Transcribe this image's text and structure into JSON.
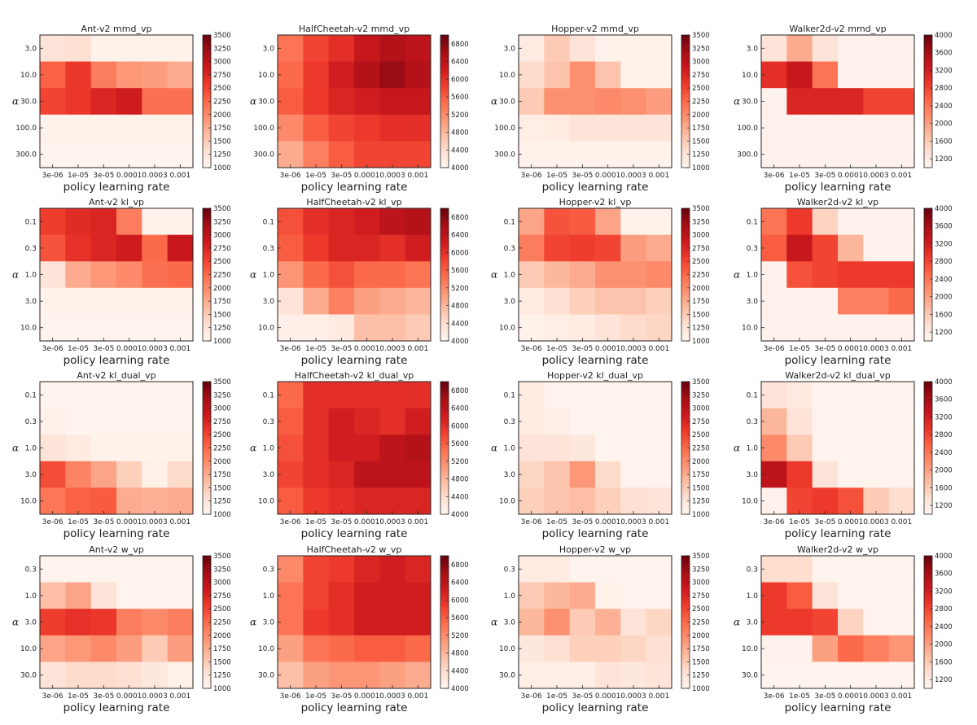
{
  "figure": {
    "xlabel": "policy learning rate",
    "ylabel": "α"
  },
  "colormap": {
    "name": "Reds",
    "stops": [
      "#fff5f0",
      "#fee0d2",
      "#fcbba1",
      "#fc9272",
      "#fb6a4a",
      "#ef3b2c",
      "#cb181d",
      "#a50f15",
      "#67000d"
    ]
  },
  "chart_data": [
    {
      "type": "heatmap",
      "title": "Ant-v2 mmd_vp",
      "xlabel": "policy learning rate",
      "ylabel": "α",
      "x": [
        "3e-06",
        "1e-05",
        "3e-05",
        "0.0001",
        "0.0003",
        "0.001"
      ],
      "y": [
        "3.0",
        "10.0",
        "30.0",
        "100.0",
        "300.0"
      ],
      "vmin": 1000,
      "vmax": 3500,
      "colorbar_ticks": [
        "1000",
        "1250",
        "1500",
        "1750",
        "2000",
        "2250",
        "2500",
        "2750",
        "3000",
        "3250",
        "3500"
      ],
      "values": [
        [
          1250,
          1300,
          1050,
          1050,
          1050,
          1050
        ],
        [
          2300,
          2600,
          2100,
          1900,
          1850,
          1750
        ],
        [
          2500,
          2600,
          2750,
          2850,
          2200,
          2200
        ],
        [
          1050,
          1050,
          1050,
          1050,
          1050,
          1050
        ],
        [
          1030,
          1030,
          1030,
          1030,
          1030,
          1030
        ]
      ]
    },
    {
      "type": "heatmap",
      "title": "HalfCheetah-v2 mmd_vp",
      "xlabel": "policy learning rate",
      "ylabel": "α",
      "x": [
        "3e-06",
        "1e-05",
        "3e-05",
        "0.0001",
        "0.0003",
        "0.001"
      ],
      "y": [
        "3.0",
        "10.0",
        "30.0",
        "100.0",
        "300.0"
      ],
      "vmin": 4000,
      "vmax": 7000,
      "colorbar_ticks": [
        "4000",
        "4400",
        "4800",
        "5200",
        "5600",
        "6000",
        "6400",
        "6800"
      ],
      "values": [
        [
          5400,
          5800,
          6000,
          6300,
          6500,
          6400
        ],
        [
          5500,
          5900,
          6200,
          6500,
          6700,
          6500
        ],
        [
          5600,
          5900,
          6100,
          6200,
          6300,
          6300
        ],
        [
          5200,
          5600,
          5800,
          5900,
          6000,
          6000
        ],
        [
          4900,
          5300,
          5600,
          5800,
          5800,
          5800
        ]
      ]
    },
    {
      "type": "heatmap",
      "title": "Hopper-v2 mmd_vp",
      "xlabel": "policy learning rate",
      "ylabel": "α",
      "x": [
        "3e-06",
        "1e-05",
        "3e-05",
        "0.0001",
        "0.0003",
        "0.001"
      ],
      "y": [
        "3.0",
        "10.0",
        "30.0",
        "100.0",
        "300.0"
      ],
      "vmin": 1000,
      "vmax": 3500,
      "colorbar_ticks": [
        "1000",
        "1250",
        "1500",
        "1750",
        "2000",
        "2250",
        "2500",
        "2750",
        "3000",
        "3250",
        "3500"
      ],
      "values": [
        [
          1150,
          1500,
          1250,
          1050,
          1050,
          1050
        ],
        [
          1350,
          1550,
          1950,
          1550,
          1050,
          1050
        ],
        [
          1500,
          1950,
          1950,
          2000,
          1950,
          1850
        ],
        [
          1100,
          1150,
          1250,
          1250,
          1250,
          1250
        ],
        [
          1050,
          1050,
          1050,
          1050,
          1050,
          1050
        ]
      ]
    },
    {
      "type": "heatmap",
      "title": "Walker2d-v2 mmd_vp",
      "xlabel": "policy learning rate",
      "ylabel": "α",
      "x": [
        "3e-06",
        "1e-05",
        "3e-05",
        "0.0001",
        "0.0003",
        "0.001"
      ],
      "y": [
        "3.0",
        "10.0",
        "30.0",
        "100.0",
        "300.0"
      ],
      "vmin": 1000,
      "vmax": 4000,
      "colorbar_ticks": [
        "1200",
        "1600",
        "2000",
        "2400",
        "2800",
        "3200",
        "3600",
        "4000"
      ],
      "values": [
        [
          1300,
          1900,
          1300,
          1050,
          1050,
          1050
        ],
        [
          3000,
          3300,
          2400,
          1050,
          1050,
          1050
        ],
        [
          1050,
          3100,
          3100,
          3100,
          2800,
          2800
        ],
        [
          1050,
          1050,
          1050,
          1050,
          1050,
          1050
        ],
        [
          1050,
          1050,
          1050,
          1050,
          1050,
          1050
        ]
      ]
    },
    {
      "type": "heatmap",
      "title": "Ant-v2 kl_vp",
      "xlabel": "policy learning rate",
      "ylabel": "α",
      "x": [
        "3e-06",
        "1e-05",
        "3e-05",
        "0.0001",
        "0.0003",
        "0.001"
      ],
      "y": [
        "0.1",
        "0.3",
        "1.0",
        "3.0",
        "10.0"
      ],
      "vmin": 1000,
      "vmax": 3500,
      "colorbar_ticks": [
        "1000",
        "1250",
        "1500",
        "1750",
        "2000",
        "2250",
        "2500",
        "2750",
        "3000",
        "3250",
        "3500"
      ],
      "values": [
        [
          2550,
          2700,
          2750,
          2100,
          1050,
          1050
        ],
        [
          2400,
          2650,
          2750,
          2850,
          2250,
          2900
        ],
        [
          1250,
          1750,
          1900,
          2000,
          2200,
          2250
        ],
        [
          1050,
          1050,
          1050,
          1050,
          1050,
          1050
        ],
        [
          1030,
          1030,
          1030,
          1030,
          1030,
          1030
        ]
      ]
    },
    {
      "type": "heatmap",
      "title": "HalfCheetah-v2 kl_vp",
      "xlabel": "policy learning rate",
      "ylabel": "α",
      "x": [
        "3e-06",
        "1e-05",
        "3e-05",
        "0.0001",
        "0.0003",
        "0.001"
      ],
      "y": [
        "0.1",
        "0.3",
        "1.0",
        "3.0",
        "10.0"
      ],
      "vmin": 4000,
      "vmax": 7000,
      "colorbar_ticks": [
        "4000",
        "4400",
        "4800",
        "5200",
        "5600",
        "6000",
        "6400",
        "6800"
      ],
      "values": [
        [
          5700,
          6000,
          6100,
          6200,
          6400,
          6500
        ],
        [
          5600,
          5900,
          6100,
          6100,
          6000,
          6200
        ],
        [
          5100,
          5500,
          5700,
          5500,
          5500,
          5400
        ],
        [
          4300,
          4900,
          5300,
          5000,
          4900,
          4800
        ],
        [
          4100,
          4100,
          4200,
          4700,
          4700,
          4600
        ]
      ]
    },
    {
      "type": "heatmap",
      "title": "Hopper-v2 kl_vp",
      "xlabel": "policy learning rate",
      "ylabel": "α",
      "x": [
        "3e-06",
        "1e-05",
        "3e-05",
        "0.0001",
        "0.0003",
        "0.001"
      ],
      "y": [
        "0.1",
        "0.3",
        "1.0",
        "3.0",
        "10.0"
      ],
      "vmin": 1000,
      "vmax": 3500,
      "colorbar_ticks": [
        "1000",
        "1250",
        "1500",
        "1750",
        "2000",
        "2250",
        "2500",
        "2750",
        "3000",
        "3250",
        "3500"
      ],
      "values": [
        [
          1800,
          2400,
          2350,
          1800,
          1050,
          1050
        ],
        [
          2100,
          2500,
          2550,
          2500,
          1850,
          1750
        ],
        [
          1500,
          1650,
          1750,
          1950,
          1950,
          2000
        ],
        [
          1150,
          1300,
          1450,
          1550,
          1550,
          1450
        ],
        [
          1050,
          1100,
          1150,
          1250,
          1350,
          1400
        ]
      ]
    },
    {
      "type": "heatmap",
      "title": "Walker2d-v2 kl_vp",
      "xlabel": "policy learning rate",
      "ylabel": "α",
      "x": [
        "3e-06",
        "1e-05",
        "3e-05",
        "0.0001",
        "0.0003",
        "0.001"
      ],
      "y": [
        "0.1",
        "0.3",
        "1.0",
        "3.0",
        "10.0"
      ],
      "vmin": 1000,
      "vmax": 4000,
      "colorbar_ticks": [
        "1200",
        "1600",
        "2000",
        "2400",
        "2800",
        "3200",
        "3600",
        "4000"
      ],
      "values": [
        [
          2400,
          2900,
          1500,
          1050,
          1050,
          1050
        ],
        [
          2600,
          3300,
          2800,
          1800,
          1050,
          1050
        ],
        [
          1050,
          2700,
          2800,
          2900,
          2900,
          2900
        ],
        [
          1050,
          1050,
          1050,
          2300,
          2300,
          2500
        ],
        [
          1050,
          1050,
          1050,
          1050,
          1050,
          1050
        ]
      ]
    },
    {
      "type": "heatmap",
      "title": "Ant-v2 kl_dual_vp",
      "xlabel": "policy learning rate",
      "ylabel": "α",
      "x": [
        "3e-06",
        "1e-05",
        "3e-05",
        "0.0001",
        "0.0003",
        "0.001"
      ],
      "y": [
        "0.1",
        "0.3",
        "1.0",
        "3.0",
        "10.0"
      ],
      "vmin": 1000,
      "vmax": 3500,
      "colorbar_ticks": [
        "1000",
        "1250",
        "1500",
        "1750",
        "2000",
        "2250",
        "2500",
        "2750",
        "3000",
        "3250",
        "3500"
      ],
      "values": [
        [
          1030,
          1030,
          1030,
          1030,
          1030,
          1030
        ],
        [
          1080,
          1030,
          1030,
          1030,
          1030,
          1030
        ],
        [
          1250,
          1150,
          1050,
          1050,
          1050,
          1050
        ],
        [
          2450,
          2050,
          1800,
          1450,
          1080,
          1350
        ],
        [
          2150,
          2300,
          2350,
          1750,
          1700,
          1750
        ]
      ]
    },
    {
      "type": "heatmap",
      "title": "HalfCheetah-v2 kl_dual_vp",
      "xlabel": "policy learning rate",
      "ylabel": "α",
      "x": [
        "3e-06",
        "1e-05",
        "3e-05",
        "0.0001",
        "0.0003",
        "0.001"
      ],
      "y": [
        "0.1",
        "0.3",
        "1.0",
        "3.0",
        "10.0"
      ],
      "vmin": 4000,
      "vmax": 7000,
      "colorbar_ticks": [
        "4000",
        "4400",
        "4800",
        "5200",
        "5600",
        "6000",
        "6400",
        "6800"
      ],
      "values": [
        [
          5500,
          6000,
          6000,
          6000,
          6000,
          6000
        ],
        [
          5600,
          6000,
          6200,
          6100,
          6000,
          6200
        ],
        [
          5700,
          6000,
          6200,
          6200,
          6400,
          6500
        ],
        [
          5800,
          6000,
          6100,
          6400,
          6400,
          6400
        ],
        [
          5600,
          5900,
          6000,
          6100,
          6100,
          6100
        ]
      ]
    },
    {
      "type": "heatmap",
      "title": "Hopper-v2 kl_dual_vp",
      "xlabel": "policy learning rate",
      "ylabel": "α",
      "x": [
        "3e-06",
        "1e-05",
        "3e-05",
        "0.0001",
        "0.0003",
        "0.001"
      ],
      "y": [
        "0.1",
        "0.3",
        "1.0",
        "3.0",
        "10.0"
      ],
      "vmin": 1000,
      "vmax": 3500,
      "colorbar_ticks": [
        "1000",
        "1250",
        "1500",
        "1750",
        "2000",
        "2250",
        "2500",
        "2750",
        "3000",
        "3250",
        "3500"
      ],
      "values": [
        [
          1150,
          1030,
          1030,
          1030,
          1030,
          1030
        ],
        [
          1150,
          1100,
          1030,
          1030,
          1030,
          1030
        ],
        [
          1250,
          1250,
          1200,
          1030,
          1030,
          1030
        ],
        [
          1400,
          1550,
          1900,
          1350,
          1030,
          1030
        ],
        [
          1450,
          1550,
          1600,
          1450,
          1300,
          1250
        ]
      ]
    },
    {
      "type": "heatmap",
      "title": "Walker2d-v2 kl_dual_vp",
      "xlabel": "policy learning rate",
      "ylabel": "α",
      "x": [
        "3e-06",
        "1e-05",
        "3e-05",
        "0.0001",
        "0.0003",
        "0.001"
      ],
      "y": [
        "0.1",
        "0.3",
        "1.0",
        "3.0",
        "10.0"
      ],
      "vmin": 1000,
      "vmax": 4000,
      "colorbar_ticks": [
        "1200",
        "1600",
        "2000",
        "2400",
        "2800",
        "3200",
        "3600",
        "4000"
      ],
      "values": [
        [
          1300,
          1200,
          1030,
          1030,
          1030,
          1030
        ],
        [
          1800,
          1300,
          1030,
          1030,
          1030,
          1030
        ],
        [
          2200,
          1600,
          1030,
          1030,
          1030,
          1030
        ],
        [
          3400,
          2900,
          1300,
          1030,
          1030,
          1030
        ],
        [
          1050,
          2800,
          2900,
          2700,
          1600,
          1400
        ]
      ]
    },
    {
      "type": "heatmap",
      "title": "Ant-v2 w_vp",
      "xlabel": "policy learning rate",
      "ylabel": "α",
      "x": [
        "3e-06",
        "1e-05",
        "3e-05",
        "0.0001",
        "0.0003",
        "0.001"
      ],
      "y": [
        "0.3",
        "1.0",
        "3.0",
        "10.0",
        "30.0"
      ],
      "vmin": 1000,
      "vmax": 3500,
      "colorbar_ticks": [
        "1000",
        "1250",
        "1500",
        "1750",
        "2000",
        "2250",
        "2500",
        "2750",
        "3000",
        "3250",
        "3500"
      ],
      "values": [
        [
          1030,
          1030,
          1030,
          1030,
          1030,
          1030
        ],
        [
          1600,
          1800,
          1250,
          1030,
          1030,
          1030
        ],
        [
          2550,
          2650,
          2600,
          2100,
          2000,
          2100
        ],
        [
          1800,
          1900,
          2000,
          1850,
          1500,
          1850
        ],
        [
          1250,
          1350,
          1350,
          1300,
          1200,
          1050
        ]
      ]
    },
    {
      "type": "heatmap",
      "title": "HalfCheetah-v2 w_vp",
      "xlabel": "policy learning rate",
      "ylabel": "α",
      "x": [
        "3e-06",
        "1e-05",
        "3e-05",
        "0.0001",
        "0.0003",
        "0.001"
      ],
      "y": [
        "0.3",
        "1.0",
        "3.0",
        "10.0",
        "30.0"
      ],
      "vmin": 4000,
      "vmax": 7000,
      "colorbar_ticks": [
        "4000",
        "4400",
        "4800",
        "5200",
        "5600",
        "6000",
        "6400",
        "6800"
      ],
      "values": [
        [
          5200,
          5800,
          5900,
          6100,
          6200,
          6100
        ],
        [
          5400,
          5800,
          6000,
          6200,
          6200,
          6200
        ],
        [
          5400,
          5900,
          6000,
          6200,
          6200,
          6200
        ],
        [
          5000,
          5400,
          5500,
          5600,
          5600,
          5500
        ],
        [
          4700,
          5000,
          5100,
          5100,
          5000,
          4900
        ]
      ]
    },
    {
      "type": "heatmap",
      "title": "Hopper-v2 w_vp",
      "xlabel": "policy learning rate",
      "ylabel": "α",
      "x": [
        "3e-06",
        "1e-05",
        "3e-05",
        "0.0001",
        "0.0003",
        "0.001"
      ],
      "y": [
        "0.3",
        "1.0",
        "3.0",
        "10.0",
        "30.0"
      ],
      "vmin": 1000,
      "vmax": 3500,
      "colorbar_ticks": [
        "1000",
        "1250",
        "1500",
        "1750",
        "2000",
        "2250",
        "2500",
        "2750",
        "3000",
        "3250",
        "3500"
      ],
      "values": [
        [
          1150,
          1150,
          1030,
          1030,
          1030,
          1030
        ],
        [
          1500,
          1650,
          1750,
          1050,
          1030,
          1030
        ],
        [
          1650,
          1950,
          1500,
          1700,
          1250,
          1400
        ],
        [
          1200,
          1300,
          1450,
          1450,
          1400,
          1300
        ],
        [
          1100,
          1100,
          1100,
          1250,
          1200,
          1250
        ]
      ]
    },
    {
      "type": "heatmap",
      "title": "Walker2d-v2 w_vp",
      "xlabel": "policy learning rate",
      "ylabel": "α",
      "x": [
        "3e-06",
        "1e-05",
        "3e-05",
        "0.0001",
        "0.0003",
        "0.001"
      ],
      "y": [
        "0.3",
        "1.0",
        "3.0",
        "10.0",
        "30.0"
      ],
      "vmin": 1000,
      "vmax": 4000,
      "colorbar_ticks": [
        "1200",
        "1600",
        "2000",
        "2400",
        "2800",
        "3200",
        "3600",
        "4000"
      ],
      "values": [
        [
          1400,
          1400,
          1030,
          1030,
          1030,
          1030
        ],
        [
          2900,
          2600,
          1300,
          1030,
          1030,
          1030
        ],
        [
          2900,
          2900,
          2800,
          1500,
          1030,
          1030
        ],
        [
          1050,
          1050,
          2000,
          2500,
          2300,
          2100
        ],
        [
          1030,
          1030,
          1030,
          1030,
          1030,
          1030
        ]
      ]
    }
  ]
}
